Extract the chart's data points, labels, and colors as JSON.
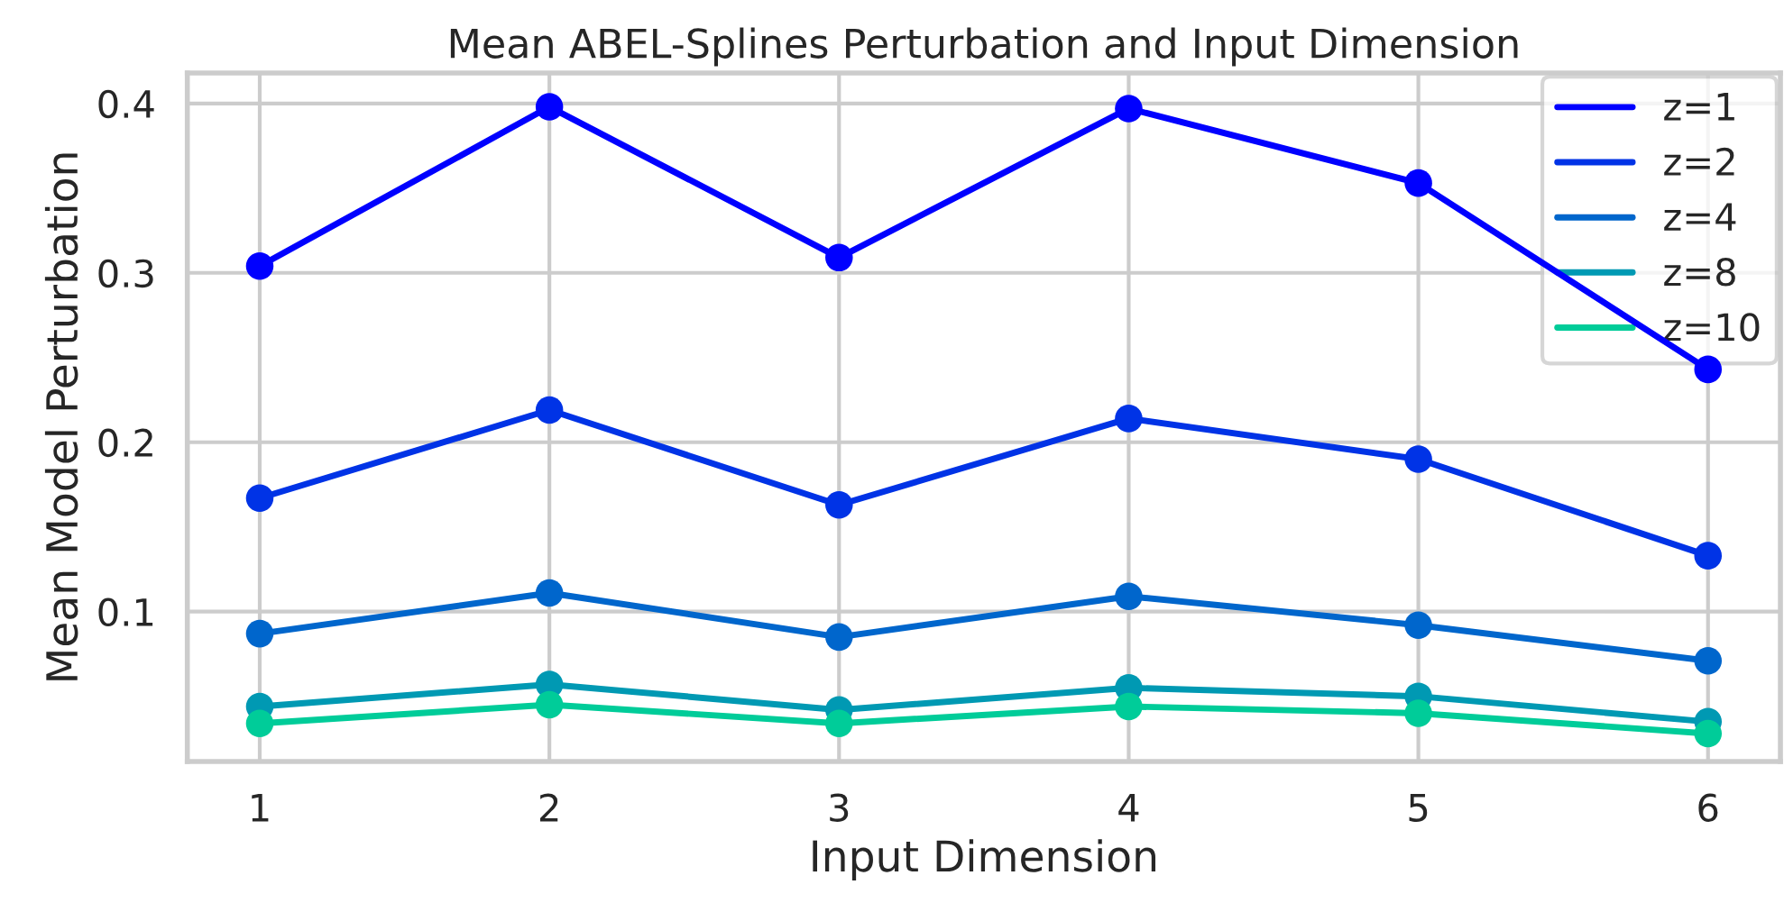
{
  "chart_data": {
    "type": "line",
    "title": "Mean ABEL-Splines Perturbation and Input Dimension",
    "xlabel": "Input Dimension",
    "ylabel": "Mean Model Perturbation",
    "x": [
      1,
      2,
      3,
      4,
      5,
      6
    ],
    "series": [
      {
        "name": "z=1",
        "color": "#0000ff",
        "values": [
          0.304,
          0.398,
          0.309,
          0.397,
          0.353,
          0.243
        ]
      },
      {
        "name": "z=2",
        "color": "#0033e6",
        "values": [
          0.167,
          0.219,
          0.163,
          0.214,
          0.19,
          0.133
        ]
      },
      {
        "name": "z=4",
        "color": "#0066cc",
        "values": [
          0.087,
          0.111,
          0.085,
          0.109,
          0.092,
          0.071
        ]
      },
      {
        "name": "z=8",
        "color": "#0099b3",
        "values": [
          0.044,
          0.057,
          0.042,
          0.055,
          0.05,
          0.035
        ]
      },
      {
        "name": "z=10",
        "color": "#00cc99",
        "values": [
          0.034,
          0.045,
          0.034,
          0.044,
          0.04,
          0.028
        ]
      }
    ],
    "xlim": [
      0.75,
      6.25
    ],
    "xticks": [
      1,
      2,
      3,
      4,
      5,
      6
    ],
    "ylim": [
      0.0115,
      0.418
    ],
    "yticks": [
      0.1,
      0.2,
      0.3,
      0.4
    ],
    "grid": true,
    "legend": "top right",
    "marker": "circle",
    "line_style": "solid"
  }
}
